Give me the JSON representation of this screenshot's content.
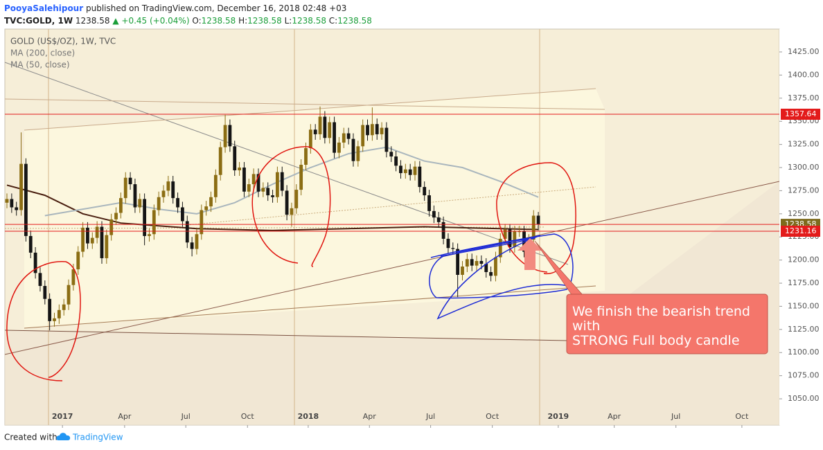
{
  "header": {
    "author": "PooyaSalehipour",
    "published": "published on TradingView.com, December 16, 2018 02:48 +03",
    "symbol": "TVC:GOLD, 1W",
    "last": "1238.58",
    "change": "▲ +0.45 (+0.04%)",
    "ohlc": [
      {
        "k": "O:",
        "v": "1238.58"
      },
      {
        "k": "H:",
        "v": "1238.58"
      },
      {
        "k": "L:",
        "v": "1238.58"
      },
      {
        "k": "C:",
        "v": "1238.58"
      }
    ]
  },
  "chart_data": {
    "type": "candlestick",
    "title": "GOLD (US$/OZ), 1W, TVC",
    "up_color": "#8b6d13",
    "down_color": "#151515",
    "open": [
      1262,
      1266,
      1257,
      1254,
      1304,
      1226,
      1208,
      1186,
      1172,
      1158,
      1134,
      1137,
      1146,
      1152,
      1173,
      1190,
      1209,
      1235,
      1218,
      1224,
      1236,
      1202,
      1227,
      1244,
      1251,
      1267,
      1289,
      1282,
      1257,
      1266,
      1226,
      1228,
      1254,
      1268,
      1275,
      1285,
      1267,
      1257,
      1242,
      1219,
      1212,
      1228,
      1254,
      1258,
      1268,
      1292,
      1322,
      1346,
      1323,
      1297,
      1300,
      1274,
      1282,
      1293,
      1274,
      1278,
      1270,
      1268,
      1295,
      1275,
      1249,
      1256,
      1276,
      1303,
      1321,
      1341,
      1336,
      1355,
      1332,
      1349,
      1316,
      1327,
      1337,
      1331,
      1307,
      1323,
      1346,
      1335,
      1347,
      1336,
      1343,
      1317,
      1312,
      1302,
      1294,
      1298,
      1292,
      1301,
      1279,
      1270,
      1253,
      1246,
      1241,
      1223,
      1213,
      1212,
      1184,
      1193,
      1201,
      1194,
      1199,
      1196,
      1187,
      1183,
      1203,
      1223,
      1233,
      1214,
      1231,
      1231,
      1209,
      1222,
      1248
    ],
    "high": [
      1272,
      1272,
      1263,
      1338,
      1310,
      1232,
      1214,
      1192,
      1178,
      1164,
      1143,
      1152,
      1158,
      1179,
      1196,
      1215,
      1241,
      1241,
      1230,
      1242,
      1242,
      1233,
      1250,
      1257,
      1273,
      1295,
      1295,
      1288,
      1272,
      1272,
      1234,
      1260,
      1274,
      1281,
      1291,
      1291,
      1273,
      1263,
      1248,
      1225,
      1234,
      1260,
      1264,
      1274,
      1298,
      1328,
      1357,
      1352,
      1329,
      1306,
      1306,
      1288,
      1299,
      1299,
      1284,
      1284,
      1276,
      1301,
      1301,
      1281,
      1262,
      1282,
      1309,
      1327,
      1347,
      1347,
      1366,
      1361,
      1355,
      1355,
      1333,
      1343,
      1343,
      1337,
      1329,
      1352,
      1352,
      1365,
      1353,
      1349,
      1349,
      1323,
      1318,
      1308,
      1304,
      1304,
      1307,
      1307,
      1285,
      1276,
      1259,
      1252,
      1247,
      1229,
      1219,
      1218,
      1199,
      1207,
      1207,
      1205,
      1205,
      1202,
      1193,
      1209,
      1229,
      1239,
      1239,
      1237,
      1237,
      1237,
      1228,
      1254,
      1252
    ],
    "low": [
      1256,
      1251,
      1248,
      1248,
      1220,
      1202,
      1180,
      1166,
      1152,
      1124,
      1128,
      1131,
      1140,
      1146,
      1167,
      1184,
      1203,
      1212,
      1212,
      1218,
      1196,
      1196,
      1221,
      1238,
      1245,
      1261,
      1276,
      1251,
      1251,
      1216,
      1220,
      1222,
      1248,
      1262,
      1269,
      1261,
      1251,
      1236,
      1213,
      1204,
      1206,
      1222,
      1248,
      1252,
      1262,
      1286,
      1316,
      1317,
      1291,
      1291,
      1268,
      1268,
      1276,
      1268,
      1268,
      1264,
      1262,
      1262,
      1269,
      1243,
      1236,
      1250,
      1270,
      1297,
      1315,
      1330,
      1330,
      1326,
      1326,
      1310,
      1310,
      1321,
      1325,
      1301,
      1301,
      1317,
      1329,
      1329,
      1330,
      1330,
      1311,
      1306,
      1296,
      1288,
      1288,
      1286,
      1286,
      1273,
      1264,
      1247,
      1240,
      1235,
      1217,
      1207,
      1206,
      1160,
      1178,
      1187,
      1188,
      1188,
      1190,
      1181,
      1177,
      1177,
      1197,
      1217,
      1208,
      1208,
      1225,
      1203,
      1203,
      1216,
      1232
    ],
    "close": [
      1266,
      1257,
      1254,
      1304,
      1226,
      1208,
      1186,
      1172,
      1158,
      1134,
      1137,
      1146,
      1152,
      1173,
      1190,
      1209,
      1235,
      1218,
      1224,
      1236,
      1202,
      1227,
      1244,
      1251,
      1267,
      1289,
      1282,
      1257,
      1266,
      1226,
      1228,
      1254,
      1268,
      1275,
      1285,
      1267,
      1257,
      1242,
      1219,
      1212,
      1228,
      1254,
      1258,
      1268,
      1292,
      1322,
      1346,
      1323,
      1297,
      1300,
      1274,
      1282,
      1293,
      1274,
      1278,
      1270,
      1268,
      1295,
      1275,
      1249,
      1256,
      1276,
      1303,
      1321,
      1341,
      1336,
      1355,
      1332,
      1349,
      1316,
      1327,
      1337,
      1331,
      1307,
      1323,
      1346,
      1335,
      1347,
      1336,
      1343,
      1317,
      1312,
      1302,
      1294,
      1298,
      1292,
      1301,
      1279,
      1270,
      1253,
      1246,
      1241,
      1223,
      1213,
      1212,
      1184,
      1193,
      1201,
      1194,
      1199,
      1196,
      1187,
      1183,
      1203,
      1223,
      1233,
      1214,
      1231,
      1231,
      1209,
      1222,
      1248,
      1238.58
    ],
    "ma_series": [
      {
        "name": "MA (200, close)",
        "color": "#4a1f10",
        "x": [
          0,
          8,
          16,
          24,
          32,
          40,
          56,
          72,
          88,
          104,
          112
        ],
        "values": [
          1281,
          1270,
          1250,
          1240,
          1237,
          1234,
          1232,
          1234,
          1236,
          1234,
          1233
        ]
      },
      {
        "name": "MA (50, close)",
        "color": "#a9b6bd",
        "x": [
          8,
          16,
          24,
          32,
          40,
          48,
          56,
          64,
          72,
          80,
          88,
          96,
          104,
          112
        ],
        "values": [
          1248,
          1255,
          1262,
          1255,
          1250,
          1262,
          1282,
          1300,
          1315,
          1322,
          1307,
          1300,
          1285,
          1268
        ]
      }
    ],
    "price_lines": [
      {
        "value": 1357.64,
        "color": "#e31b1b",
        "label_color": "#e31b1b"
      },
      {
        "value": 1238.58,
        "color": "#e31b1b",
        "label_color": "#7d6a1c"
      },
      {
        "value": 1231.16,
        "color": "#e31b1b",
        "label_color": "#e31b1b"
      }
    ],
    "xlim": [
      -0.44,
      162.8
    ],
    "xticks": [
      {
        "value": 11.7,
        "label": "2017"
      },
      {
        "value": 24.8,
        "label": "Apr"
      },
      {
        "value": 37.7,
        "label": "Jul"
      },
      {
        "value": 50.7,
        "label": "Oct"
      },
      {
        "value": 63.5,
        "label": "2018"
      },
      {
        "value": 76.4,
        "label": "Apr"
      },
      {
        "value": 89.3,
        "label": "Jul"
      },
      {
        "value": 102.3,
        "label": "Oct"
      },
      {
        "value": 116.2,
        "label": "2019"
      },
      {
        "value": 128.0,
        "label": "Apr"
      },
      {
        "value": 141.0,
        "label": "Jul"
      },
      {
        "value": 154.9,
        "label": "Oct"
      }
    ],
    "ylim": [
      1021.6,
      1449.7
    ],
    "yticks": [
      {
        "value": 1050,
        "label": "1050.00"
      },
      {
        "value": 1075,
        "label": "1075.00"
      },
      {
        "value": 1100,
        "label": "1100.00"
      },
      {
        "value": 1125,
        "label": "1125.00"
      },
      {
        "value": 1150,
        "label": "1150.00"
      },
      {
        "value": 1175,
        "label": "1175.00"
      },
      {
        "value": 1200,
        "label": "1200.00"
      },
      {
        "value": 1225,
        "label": "1225.00"
      },
      {
        "value": 1250,
        "label": "1250.00"
      },
      {
        "value": 1275,
        "label": "1275.00"
      },
      {
        "value": 1300,
        "label": "1300.00"
      },
      {
        "value": 1325,
        "label": "1325.00"
      },
      {
        "value": 1350,
        "label": "1350.00"
      },
      {
        "value": 1375,
        "label": "1375.00"
      },
      {
        "value": 1400,
        "label": "1400.00"
      },
      {
        "value": 1425,
        "label": "1425.00"
      }
    ],
    "annotation": [
      "We finish the bearish trend",
      "with",
      "STRONG Full body candle"
    ]
  },
  "footer": {
    "created": "Created with",
    "brand": "TradingView"
  }
}
